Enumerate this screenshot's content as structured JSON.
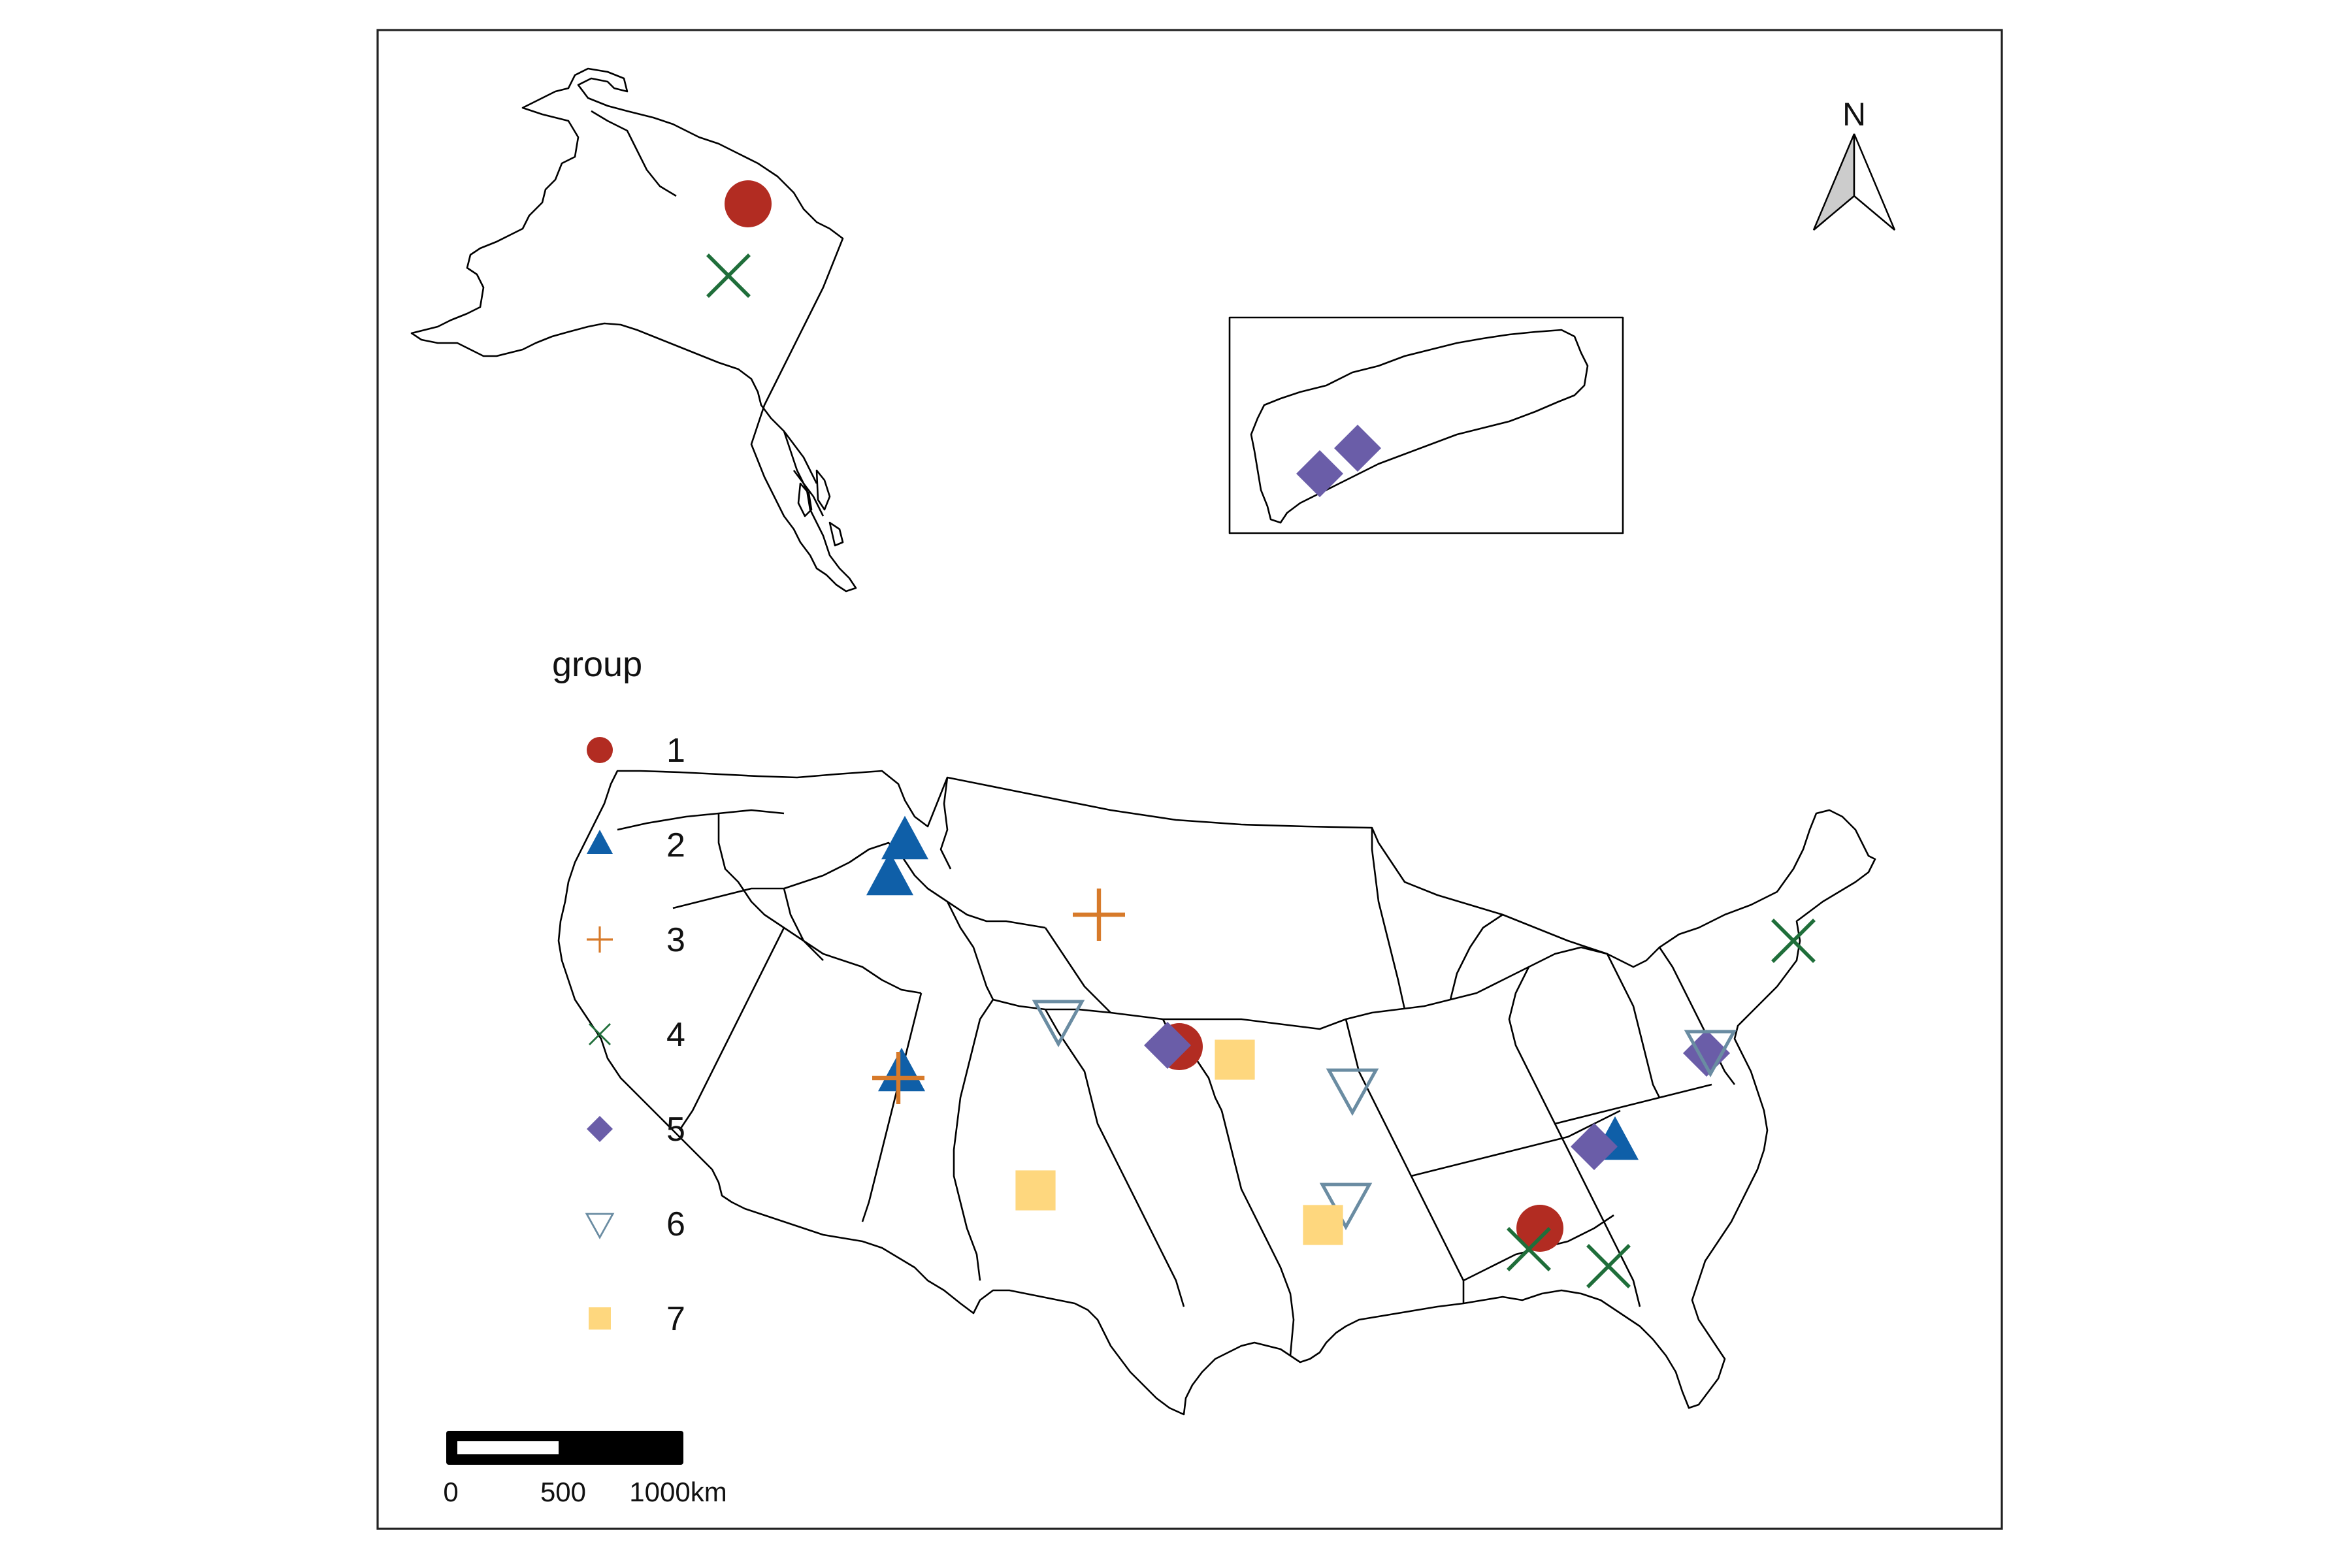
{
  "colors": {
    "group1": "#B22C22",
    "group2": "#0F5FA8",
    "group3": "#D77A2A",
    "group4": "#1F6E3A",
    "group5": "#6A5DA8",
    "group6": "#6A8CA2",
    "group7": "#FED77E"
  },
  "legend": {
    "title": "group",
    "items": [
      {
        "label": "1",
        "shape": "circle",
        "color": "#B22C22"
      },
      {
        "label": "2",
        "shape": "triangle-up",
        "color": "#0F5FA8"
      },
      {
        "label": "3",
        "shape": "plus",
        "color": "#D77A2A"
      },
      {
        "label": "4",
        "shape": "cross",
        "color": "#1F6E3A"
      },
      {
        "label": "5",
        "shape": "diamond",
        "color": "#6A5DA8"
      },
      {
        "label": "6",
        "shape": "triangle-down-open",
        "color": "#6A8CA2"
      },
      {
        "label": "7",
        "shape": "square",
        "color": "#FED77E"
      }
    ]
  },
  "north_arrow": {
    "label": "N",
    "icon": "north-arrow-icon"
  },
  "scale_bar": {
    "labels": [
      "0",
      "500",
      "1000km"
    ]
  }
}
